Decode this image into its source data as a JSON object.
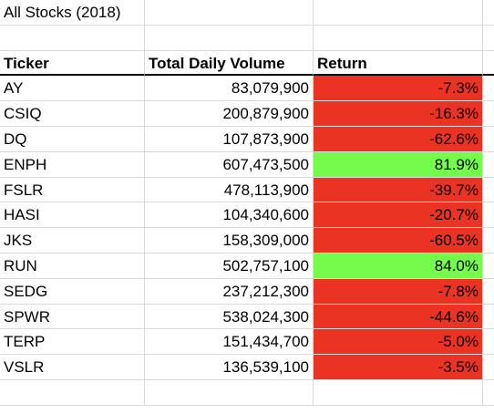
{
  "sheet": {
    "title": "All Stocks (2018)",
    "headers": {
      "ticker": "Ticker",
      "volume": "Total Daily Volume",
      "return": "Return"
    },
    "colors": {
      "negative_fill": "#ea3323",
      "positive_fill": "#75fb4c",
      "gridline": "#d9d9d9"
    },
    "rows": [
      {
        "ticker": "AY",
        "volume": "83,079,900",
        "return": "-7.3%",
        "status": "negative"
      },
      {
        "ticker": "CSIQ",
        "volume": "200,879,900",
        "return": "-16.3%",
        "status": "negative"
      },
      {
        "ticker": "DQ",
        "volume": "107,873,900",
        "return": "-62.6%",
        "status": "negative"
      },
      {
        "ticker": "ENPH",
        "volume": "607,473,500",
        "return": "81.9%",
        "status": "positive"
      },
      {
        "ticker": "FSLR",
        "volume": "478,113,900",
        "return": "-39.7%",
        "status": "negative"
      },
      {
        "ticker": "HASI",
        "volume": "104,340,600",
        "return": "-20.7%",
        "status": "negative"
      },
      {
        "ticker": "JKS",
        "volume": "158,309,000",
        "return": "-60.5%",
        "status": "negative"
      },
      {
        "ticker": "RUN",
        "volume": "502,757,100",
        "return": "84.0%",
        "status": "positive"
      },
      {
        "ticker": "SEDG",
        "volume": "237,212,300",
        "return": "-7.8%",
        "status": "negative"
      },
      {
        "ticker": "SPWR",
        "volume": "538,024,300",
        "return": "-44.6%",
        "status": "negative"
      },
      {
        "ticker": "TERP",
        "volume": "151,434,700",
        "return": "-5.0%",
        "status": "negative"
      },
      {
        "ticker": "VSLR",
        "volume": "136,539,100",
        "return": "-3.5%",
        "status": "negative"
      }
    ]
  }
}
